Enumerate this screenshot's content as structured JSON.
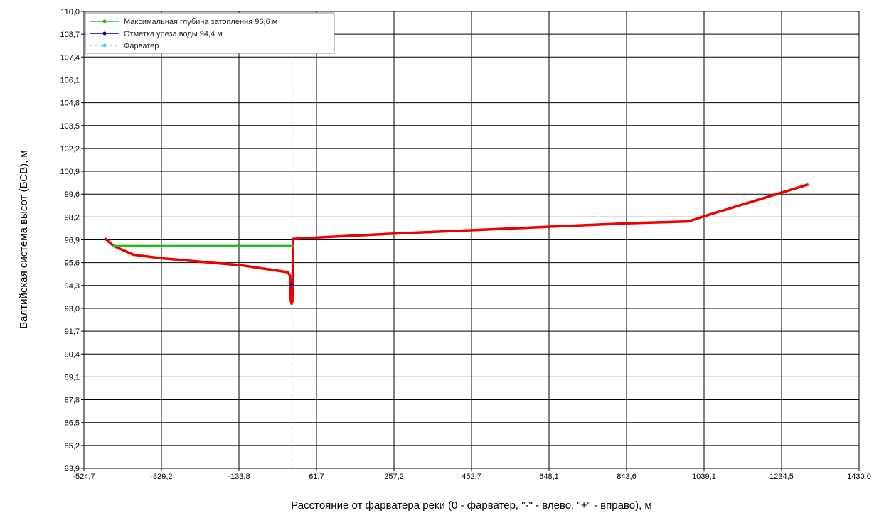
{
  "chart_data": {
    "type": "line",
    "xlabel": "Расстояние от фарватера реки (0 - фарватер, \"-\" - влево, \"+\" - вправо), м",
    "ylabel": "Балтийская система высот (БСВ), м",
    "xlim": [
      -524.7,
      1430.0
    ],
    "ylim": [
      83.9,
      110.0
    ],
    "x_ticks": [
      -524.7,
      -329.2,
      -133.8,
      61.7,
      257.2,
      452.7,
      648.1,
      843.6,
      1039.1,
      1234.5,
      1430.0
    ],
    "x_tick_labels": [
      "-524,7",
      "-329,2",
      "-133,8",
      "61,7",
      "257,2",
      "452,7",
      "648,1",
      "843,6",
      "1039,1",
      "1234,5",
      "1430,0"
    ],
    "y_ticks": [
      110.0,
      108.7,
      107.4,
      106.1,
      104.8,
      103.5,
      102.2,
      100.9,
      99.6,
      98.2,
      96.9,
      95.6,
      94.3,
      93.0,
      91.7,
      90.4,
      89.1,
      87.8,
      86.5,
      85.2,
      83.9
    ],
    "y_tick_labels": [
      "110,0",
      "108,7",
      "107,4",
      "106,1",
      "104,8",
      "103,5",
      "102,2",
      "100,9",
      "99,6",
      "98,2",
      "96,9",
      "95,6",
      "94,3",
      "93,0",
      "91,7",
      "90,4",
      "89,1",
      "87,8",
      "86,5",
      "85,2",
      "83,9"
    ],
    "grid": true,
    "legend_position": "top-left",
    "series": [
      {
        "name": "Максимальная глубина затопления 96,6 м",
        "color": "#22bb22",
        "style": "solid",
        "x": [
          -450,
          3
        ],
        "y": [
          96.6,
          96.6
        ]
      },
      {
        "name": "Отметка уреза воды 94,4 м",
        "color": "#000080",
        "style": "solid",
        "x": [
          -5,
          3
        ],
        "y": [
          94.4,
          94.4
        ]
      },
      {
        "name": "Фарватер",
        "color": "#33dddd",
        "style": "dashed",
        "x": [
          0,
          0
        ],
        "y": [
          83.9,
          110.0
        ]
      },
      {
        "name": "",
        "color": "#ee0000",
        "style": "solid",
        "x": [
          -470,
          -450,
          -400,
          -330,
          -130,
          -10,
          -5,
          -3,
          -1,
          1,
          3,
          80,
          250,
          450,
          650,
          850,
          1000,
          1040,
          1300
        ],
        "y": [
          97.0,
          96.6,
          96.1,
          95.9,
          95.5,
          95.1,
          94.9,
          93.5,
          93.3,
          93.4,
          97.0,
          97.1,
          97.3,
          97.5,
          97.7,
          97.9,
          98.0,
          98.3,
          100.1
        ]
      }
    ]
  }
}
